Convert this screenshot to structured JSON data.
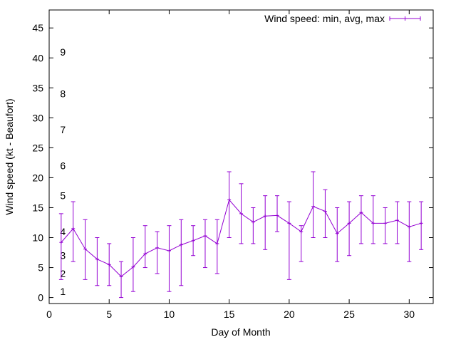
{
  "chart_data": {
    "type": "line",
    "xlabel": "Day of Month",
    "ylabel": "Wind speed (kt - Beaufort)",
    "xlim": [
      0,
      32
    ],
    "ylim": [
      -1,
      48
    ],
    "xticks": [
      0,
      5,
      10,
      15,
      20,
      25,
      30
    ],
    "yticks": [
      0,
      5,
      10,
      15,
      20,
      25,
      30,
      35,
      40,
      45
    ],
    "grid": false,
    "legend_position": "top-right",
    "color": "#9400d3",
    "series": [
      {
        "name": "Wind speed: min, avg, max",
        "x": [
          1,
          2,
          3,
          4,
          5,
          6,
          7,
          8,
          9,
          10,
          11,
          12,
          13,
          14,
          15,
          16,
          17,
          18,
          19,
          20,
          21,
          22,
          23,
          24,
          25,
          26,
          27,
          28,
          29,
          30,
          31
        ],
        "avg": [
          9.2,
          11.5,
          8.1,
          6.4,
          5.5,
          3.5,
          5.1,
          7.3,
          8.3,
          7.8,
          8.8,
          9.5,
          10.3,
          9.0,
          16.3,
          14.0,
          12.6,
          13.6,
          13.7,
          12.4,
          11.0,
          15.2,
          14.4,
          10.7,
          12.4,
          14.2,
          12.4,
          12.4,
          12.9,
          11.8,
          12.4
        ],
        "min": [
          3,
          6,
          3,
          2,
          2,
          0,
          1,
          5,
          4,
          1,
          2,
          7,
          5,
          4,
          10,
          9,
          9,
          8,
          11,
          3,
          6,
          10,
          10,
          6,
          7,
          9,
          9,
          9,
          9,
          6,
          8
        ],
        "max": [
          14,
          16,
          13,
          10,
          9,
          6,
          10,
          12,
          11,
          12,
          13,
          12,
          13,
          13,
          21,
          19,
          15,
          17,
          17,
          16,
          12,
          21,
          18,
          15,
          16,
          17,
          17,
          15,
          16,
          16,
          16
        ]
      }
    ],
    "annotations": [
      {
        "text": "1",
        "x": 0.5,
        "y": 1
      },
      {
        "text": "2",
        "x": 0.5,
        "y": 4
      },
      {
        "text": "3",
        "x": 0.5,
        "y": 7
      },
      {
        "text": "4",
        "x": 0.5,
        "y": 11
      },
      {
        "text": "5",
        "x": 0.5,
        "y": 17
      },
      {
        "text": "6",
        "x": 0.5,
        "y": 22
      },
      {
        "text": "7",
        "x": 0.5,
        "y": 28
      },
      {
        "text": "8",
        "x": 0.5,
        "y": 34
      },
      {
        "text": "9",
        "x": 0.5,
        "y": 41
      }
    ]
  }
}
